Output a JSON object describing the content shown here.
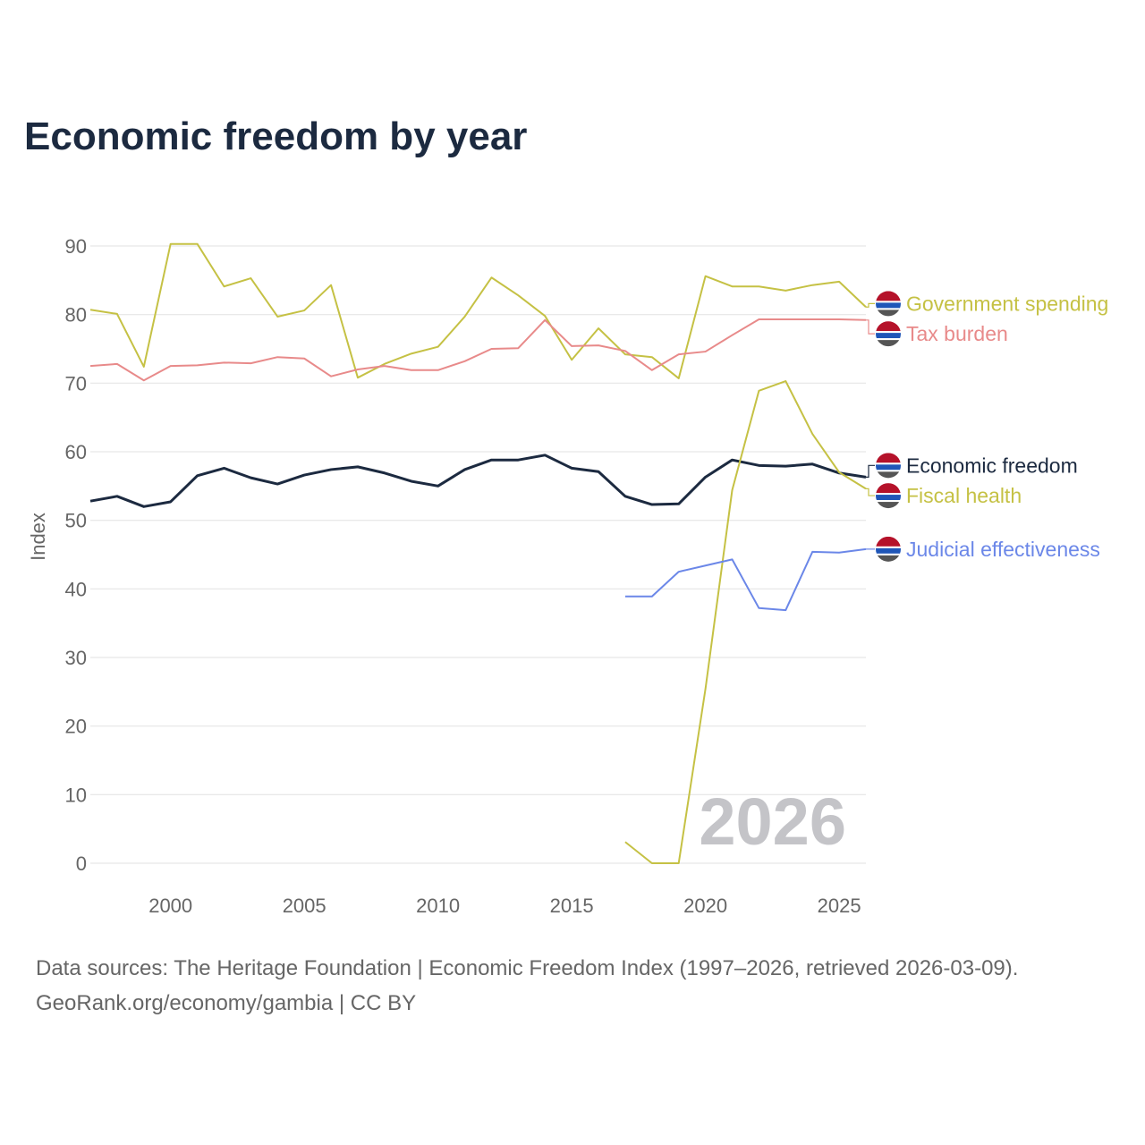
{
  "title": "Economic freedom by year",
  "watermark_year": "2026",
  "footer": {
    "line1": "Data sources: The Heritage Foundation | Economic Freedom Index (1997–2026, retrieved 2026-03-09).",
    "line2": "GeoRank.org/economy/gambia | CC BY"
  },
  "chart_data": {
    "type": "line",
    "title": "Economic freedom by year",
    "xlabel": "",
    "ylabel": "Index",
    "xlim": [
      1997,
      2026
    ],
    "ylim": [
      0,
      90
    ],
    "xticks": [
      2000,
      2005,
      2010,
      2015,
      2020,
      2025
    ],
    "yticks": [
      0,
      10,
      20,
      30,
      40,
      50,
      60,
      70,
      80,
      90
    ],
    "grid": true,
    "legend": "right, inline labels with flag icons",
    "series": [
      {
        "name": "Government spending",
        "color": "#c5c144",
        "width": 2,
        "x": [
          1997,
          1998,
          1999,
          2000,
          2001,
          2002,
          2003,
          2004,
          2005,
          2006,
          2007,
          2008,
          2009,
          2010,
          2011,
          2012,
          2013,
          2014,
          2015,
          2016,
          2017,
          2018,
          2019,
          2020,
          2021,
          2022,
          2023,
          2024,
          2025,
          2026
        ],
        "y": [
          80.7,
          80.1,
          72.4,
          90.3,
          90.3,
          84.1,
          85.3,
          79.7,
          80.6,
          84.3,
          70.8,
          72.8,
          74.3,
          75.3,
          79.7,
          85.4,
          82.8,
          79.8,
          73.4,
          78.0,
          74.2,
          73.8,
          70.7,
          85.6,
          84.1,
          84.1,
          83.5,
          84.3,
          84.8,
          81.1
        ],
        "label_y": 81.6
      },
      {
        "name": "Tax burden",
        "color": "#e88a8a",
        "width": 2,
        "x": [
          1997,
          1998,
          1999,
          2000,
          2001,
          2002,
          2003,
          2004,
          2005,
          2006,
          2007,
          2008,
          2009,
          2010,
          2011,
          2012,
          2013,
          2014,
          2015,
          2016,
          2017,
          2018,
          2019,
          2020,
          2021,
          2022,
          2023,
          2024,
          2025,
          2026
        ],
        "y": [
          72.5,
          72.8,
          70.4,
          72.5,
          72.6,
          73.0,
          72.9,
          73.8,
          73.6,
          71.0,
          72.0,
          72.5,
          71.9,
          71.9,
          73.2,
          75.0,
          75.1,
          79.2,
          75.4,
          75.5,
          74.7,
          71.9,
          74.2,
          74.6,
          77.0,
          79.3,
          79.3,
          79.3,
          79.3,
          79.2
        ],
        "label_y": 77.2
      },
      {
        "name": "Economic freedom",
        "color": "#1c2a40",
        "width": 3,
        "x": [
          1997,
          1998,
          1999,
          2000,
          2001,
          2002,
          2003,
          2004,
          2005,
          2006,
          2007,
          2008,
          2009,
          2010,
          2011,
          2012,
          2013,
          2014,
          2015,
          2016,
          2017,
          2018,
          2019,
          2020,
          2021,
          2022,
          2023,
          2024,
          2025,
          2026
        ],
        "y": [
          52.8,
          53.5,
          52.0,
          52.7,
          56.5,
          57.6,
          56.2,
          55.3,
          56.6,
          57.4,
          57.8,
          56.9,
          55.7,
          55.0,
          57.4,
          58.8,
          58.8,
          59.5,
          57.6,
          57.1,
          53.5,
          52.3,
          52.4,
          56.3,
          58.8,
          58.0,
          57.9,
          58.2,
          56.9,
          56.3
        ],
        "label_y": 58.0
      },
      {
        "name": "Fiscal health",
        "color": "#c5c144",
        "width": 2,
        "x": [
          2017,
          2018,
          2019,
          2020,
          2021,
          2022,
          2023,
          2024,
          2025,
          2026
        ],
        "y": [
          3.1,
          0,
          0,
          25.4,
          54.4,
          68.9,
          70.3,
          62.6,
          57.0,
          54.6
        ],
        "label_y": 53.6
      },
      {
        "name": "Judicial effectiveness",
        "color": "#6b87e8",
        "width": 2,
        "x": [
          2017,
          2018,
          2019,
          2020,
          2021,
          2022,
          2023,
          2024,
          2025,
          2026
        ],
        "y": [
          38.9,
          38.9,
          42.5,
          43.4,
          44.3,
          37.2,
          36.9,
          45.4,
          45.3,
          45.8
        ],
        "label_y": 45.8
      }
    ]
  }
}
